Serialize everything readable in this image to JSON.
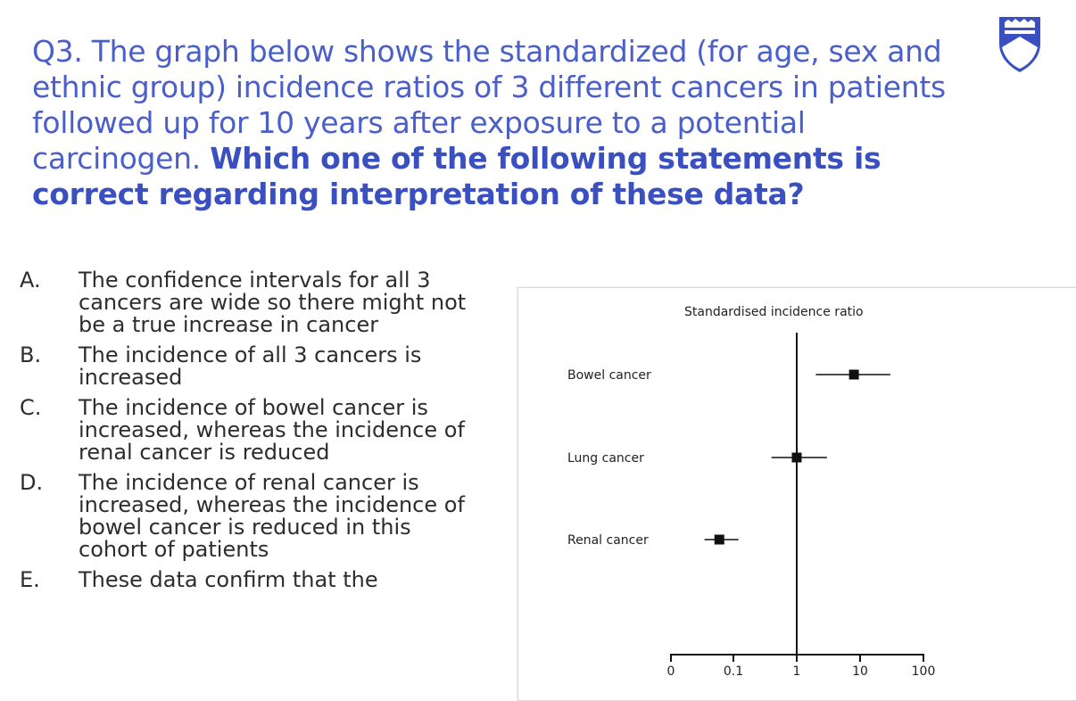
{
  "question": {
    "normal": "Q3. The graph below shows the standardized (for age, sex and ethnic group) incidence ratios of 3 different cancers in patients followed up for 10 years after exposure to a potential carcinogen.",
    "bold": "Which one of the following statements is correct regarding interpretation of these data?"
  },
  "options": [
    {
      "letter": "A.",
      "text": "The confidence intervals for all 3 cancers are wide so there might not be a true increase in cancer"
    },
    {
      "letter": "B.",
      "text": "The incidence of all 3 cancers is increased"
    },
    {
      "letter": "C.",
      "text": "The incidence of bowel cancer is increased, whereas the incidence of renal cancer is reduced"
    },
    {
      "letter": "D.",
      "text": "The incidence of renal cancer is increased, whereas the incidence of bowel cancer is reduced in this cohort of patients"
    },
    {
      "letter": "E.",
      "text": "These data confirm that the"
    }
  ],
  "logo": {
    "icon": "university-shield-icon",
    "color": "#3b50c0"
  },
  "chart_data": {
    "type": "scatter",
    "title": "Standardised incidence ratio",
    "x_scale": "log",
    "tick_labels": [
      "0",
      "0.1",
      "1",
      "10",
      "100"
    ],
    "reference_line_x": 1,
    "categories": [
      "Bowel cancer",
      "Lung cancer",
      "Renal cancer"
    ],
    "estimates": [
      8,
      1,
      0.06
    ],
    "ci_low": [
      2,
      0.4,
      0.035
    ],
    "ci_high": [
      30,
      3,
      0.12
    ]
  }
}
